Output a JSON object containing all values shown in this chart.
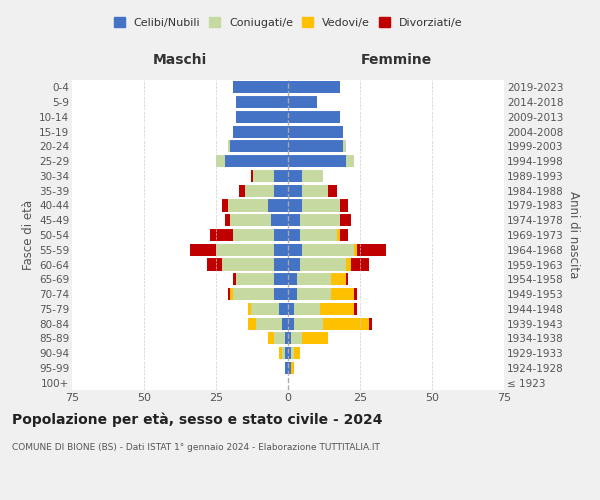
{
  "age_groups": [
    "100+",
    "95-99",
    "90-94",
    "85-89",
    "80-84",
    "75-79",
    "70-74",
    "65-69",
    "60-64",
    "55-59",
    "50-54",
    "45-49",
    "40-44",
    "35-39",
    "30-34",
    "25-29",
    "20-24",
    "15-19",
    "10-14",
    "5-9",
    "0-4"
  ],
  "birth_years": [
    "≤ 1923",
    "1924-1928",
    "1929-1933",
    "1934-1938",
    "1939-1943",
    "1944-1948",
    "1949-1953",
    "1954-1958",
    "1959-1963",
    "1964-1968",
    "1969-1973",
    "1974-1978",
    "1979-1983",
    "1984-1988",
    "1989-1993",
    "1994-1998",
    "1999-2003",
    "2004-2008",
    "2009-2013",
    "2014-2018",
    "2019-2023"
  ],
  "maschi": {
    "celibi": [
      0,
      1,
      1,
      1,
      2,
      3,
      5,
      5,
      5,
      5,
      5,
      6,
      7,
      5,
      5,
      22,
      20,
      19,
      18,
      18,
      19
    ],
    "coniugati": [
      0,
      0,
      1,
      4,
      9,
      10,
      14,
      13,
      18,
      20,
      14,
      14,
      14,
      10,
      7,
      3,
      1,
      0,
      0,
      0,
      0
    ],
    "vedovi": [
      0,
      0,
      1,
      2,
      3,
      1,
      1,
      0,
      0,
      0,
      0,
      0,
      0,
      0,
      0,
      0,
      0,
      0,
      0,
      0,
      0
    ],
    "divorziati": [
      0,
      0,
      0,
      0,
      0,
      0,
      1,
      1,
      5,
      9,
      8,
      2,
      2,
      2,
      1,
      0,
      0,
      0,
      0,
      0,
      0
    ]
  },
  "femmine": {
    "nubili": [
      0,
      1,
      1,
      1,
      2,
      2,
      3,
      3,
      4,
      5,
      4,
      4,
      5,
      5,
      5,
      20,
      19,
      19,
      18,
      10,
      18
    ],
    "coniugate": [
      0,
      0,
      1,
      4,
      10,
      9,
      12,
      12,
      16,
      18,
      13,
      14,
      13,
      9,
      7,
      3,
      1,
      0,
      0,
      0,
      0
    ],
    "vedove": [
      0,
      1,
      2,
      9,
      16,
      12,
      8,
      5,
      2,
      1,
      1,
      0,
      0,
      0,
      0,
      0,
      0,
      0,
      0,
      0,
      0
    ],
    "divorziate": [
      0,
      0,
      0,
      0,
      1,
      1,
      1,
      1,
      6,
      10,
      3,
      4,
      3,
      3,
      0,
      0,
      0,
      0,
      0,
      0,
      0
    ]
  },
  "colors": {
    "celibi": "#4472c4",
    "coniugati": "#c5d9a0",
    "vedovi": "#ffc000",
    "divorziati": "#c00000"
  },
  "xlim": 75,
  "title": "Popolazione per età, sesso e stato civile - 2024",
  "subtitle": "COMUNE DI BIONE (BS) - Dati ISTAT 1° gennaio 2024 - Elaborazione TUTTITALIA.IT",
  "ylabel_left": "Fasce di età",
  "ylabel_right": "Anni di nascita",
  "xlabel_left": "Maschi",
  "xlabel_right": "Femmine",
  "bg_color": "#f0f0f0",
  "plot_bg": "#ffffff"
}
